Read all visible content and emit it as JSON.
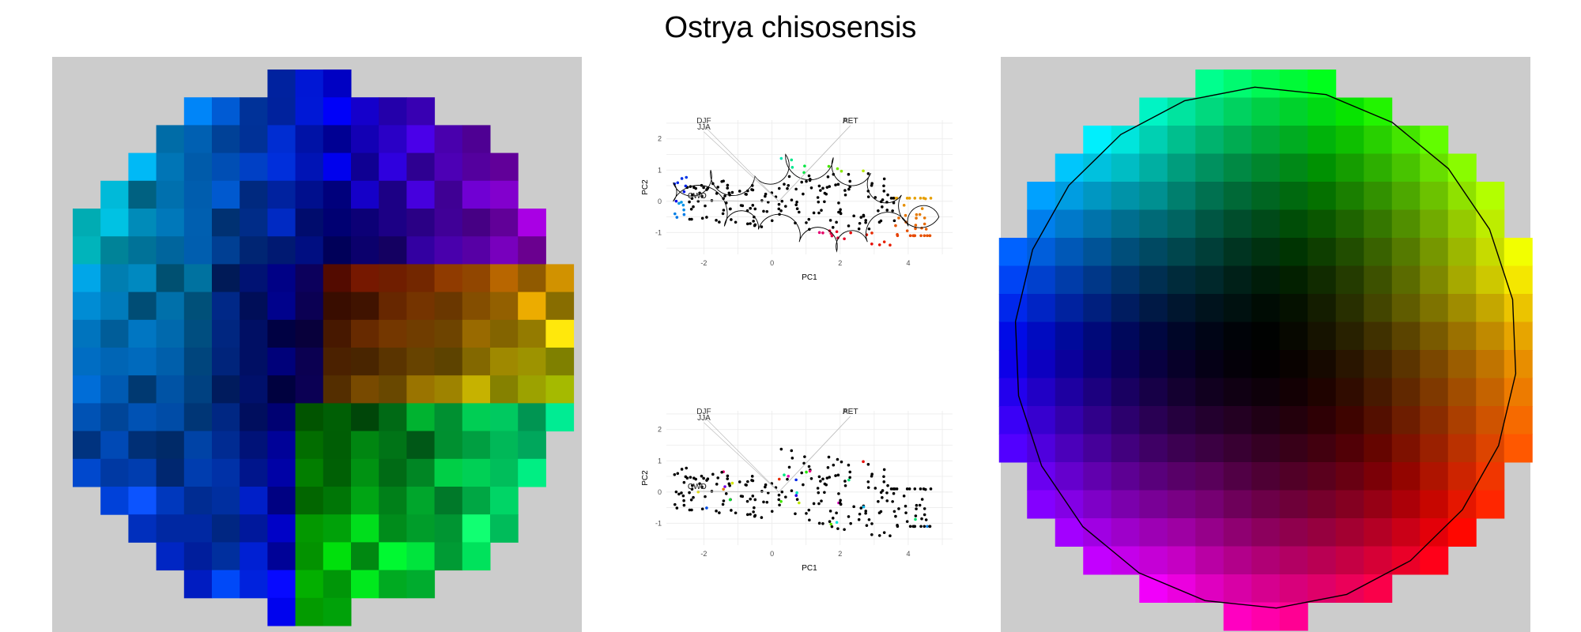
{
  "title": "Ostrya chisosensis",
  "colors": {
    "panel_background": "#cccccc",
    "plot_grid": "#ebebeb",
    "hull_line": "#000000"
  },
  "chart_data": [
    {
      "type": "heatmap",
      "description_panel": "left-geographic-raster",
      "grid_rows": 20,
      "grid_cols": 19,
      "note": "pixel colors encode PC scores of climate space"
    },
    {
      "type": "scatter",
      "panel": "pca-top",
      "xlabel": "PC1",
      "ylabel": "PC2",
      "xticks": [
        "-2",
        "0",
        "2",
        "4"
      ],
      "yticks": [
        "-1",
        "0",
        "1",
        "2"
      ],
      "xlim": [
        -3.1,
        5.3
      ],
      "ylim": [
        -1.7,
        2.6
      ],
      "vector_labels": [
        "DJF",
        "JJA",
        "PET",
        "AET",
        "CWD",
        "CWD"
      ],
      "hull": true
    },
    {
      "type": "scatter",
      "panel": "pca-bottom",
      "xlabel": "PC1",
      "ylabel": "PC2",
      "xticks": [
        "-2",
        "0",
        "2",
        "4"
      ],
      "yticks": [
        "-1",
        "0",
        "1",
        "2"
      ],
      "xlim": [
        -3.1,
        5.3
      ],
      "ylim": [
        -1.7,
        2.6
      ],
      "vector_labels": [
        "DJF",
        "JJA",
        "PET",
        "AET",
        "CWD",
        "CWD"
      ],
      "hull": false
    },
    {
      "type": "heatmap",
      "panel": "right-color-legend",
      "grid_rows": 20,
      "grid_cols": 19,
      "note": "circular color wheel legend with outline polygon"
    }
  ]
}
